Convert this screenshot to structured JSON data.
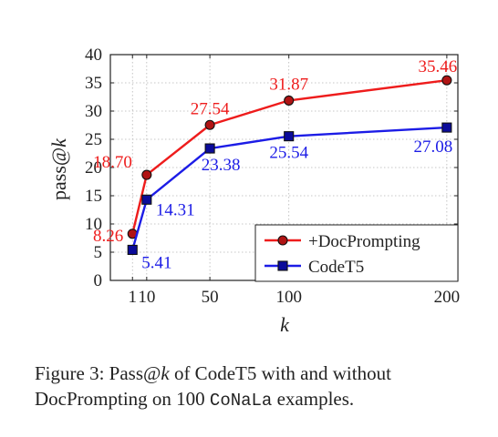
{
  "chart_data": {
    "type": "line",
    "x": [
      1,
      10,
      50,
      100,
      200
    ],
    "xticks": [
      1,
      10,
      50,
      100,
      200
    ],
    "xtick_labels": [
      "1",
      "10",
      "50",
      "100",
      "200"
    ],
    "xlim": [
      -13,
      207
    ],
    "ylim": [
      0,
      40
    ],
    "yticks": [
      0,
      5,
      10,
      15,
      20,
      25,
      30,
      35,
      40
    ],
    "xlabel": "k",
    "ylabel_main": "pass@",
    "ylabel_var": "k",
    "title": "",
    "grid": true,
    "legend_position": "bottom-right",
    "series": [
      {
        "name": "+DocPrompting",
        "color": "#ee1c1c",
        "marker": "circle",
        "values": [
          8.26,
          18.7,
          27.54,
          31.87,
          35.46
        ],
        "labels": [
          "8.26",
          "18.70",
          "27.54",
          "31.87",
          "35.46"
        ]
      },
      {
        "name": "CodeT5",
        "color": "#1c1ce6",
        "marker": "square",
        "values": [
          5.41,
          14.31,
          23.38,
          25.54,
          27.08
        ],
        "labels": [
          "5.41",
          "14.31",
          "23.38",
          "25.54",
          "27.08"
        ]
      }
    ]
  },
  "caption": {
    "prefix": "Figure 3: Pass@",
    "var": "k",
    "middle": " of CodeT5 with and without DocPrompting on 100 ",
    "dataset": "CoNaLa",
    "suffix": " examples."
  }
}
